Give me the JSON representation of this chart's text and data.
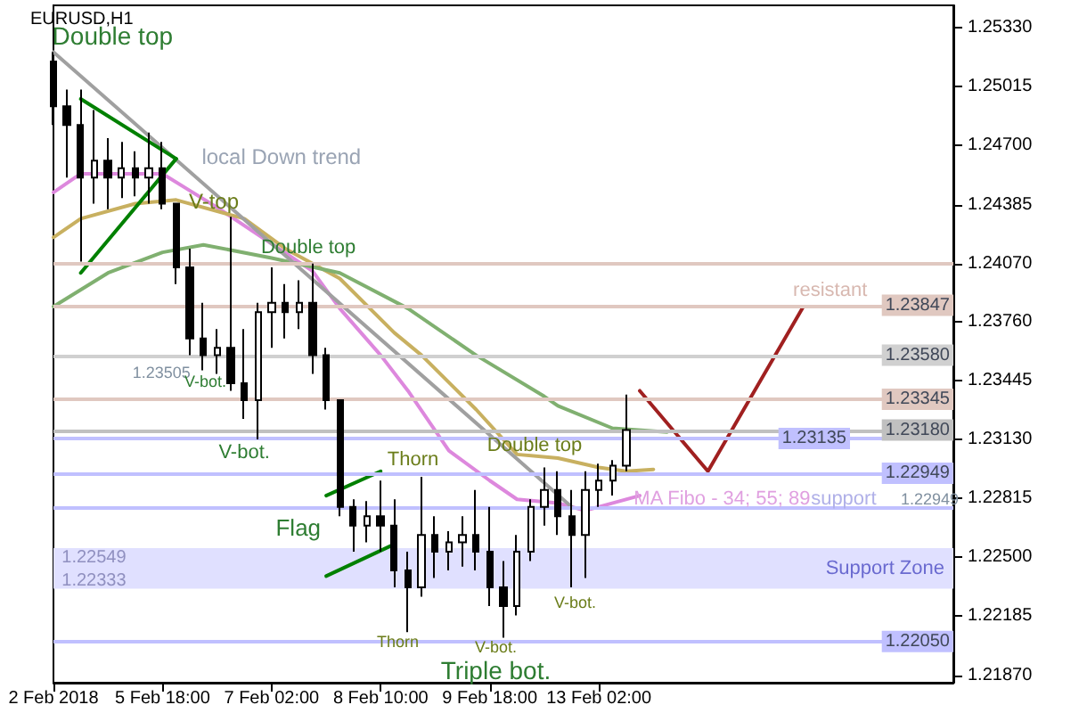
{
  "chart_data": {
    "type": "candlestick",
    "title": "EURUSD,H1",
    "color": "#000000",
    "marker": "none",
    "categories": [
      "2 Feb 2018",
      null,
      null,
      null,
      null,
      null,
      null,
      null,
      "5 Feb 18:00",
      null,
      null,
      null,
      null,
      null,
      null,
      null,
      "7 Feb 02:00",
      null,
      null,
      null,
      null,
      null,
      null,
      null,
      "8 Feb 10:00",
      null,
      null,
      null,
      null,
      null,
      null,
      null,
      "9 Feb 18:00",
      null,
      null,
      null,
      null,
      null,
      null,
      null,
      "13 Feb 02:00",
      null,
      null,
      null,
      null,
      null,
      null,
      null,
      null,
      null,
      null,
      null,
      null,
      null,
      null,
      null,
      null,
      null,
      null,
      null,
      null,
      null,
      null,
      null,
      null,
      null,
      null
    ],
    "ohlc": [
      [
        1.2515,
        1.252,
        1.2481,
        1.2491
      ],
      [
        1.2491,
        1.25,
        1.2453,
        1.2481
      ],
      [
        1.2481,
        1.25,
        1.2408,
        1.2453
      ],
      [
        1.2453,
        1.2489,
        1.2439,
        1.2462
      ],
      [
        1.2462,
        1.2474,
        1.2436,
        1.2453
      ],
      [
        1.2453,
        1.2472,
        1.2442,
        1.2458
      ],
      [
        1.2458,
        1.2467,
        1.2443,
        1.2453
      ],
      [
        1.2453,
        1.2477,
        1.2439,
        1.2458
      ],
      [
        1.2458,
        1.2472,
        1.2436,
        1.2439
      ],
      [
        1.2439,
        1.2439,
        1.2396,
        1.2405
      ],
      [
        1.2405,
        1.2415,
        1.2358,
        1.2367
      ],
      [
        1.2367,
        1.2386,
        1.235,
        1.2358
      ],
      [
        1.2358,
        1.2372,
        1.2348,
        1.2362
      ],
      [
        1.2362,
        1.2432,
        1.2339,
        1.2343
      ],
      [
        1.2343,
        1.2372,
        1.2324,
        1.2334
      ],
      [
        1.2334,
        1.2386,
        1.2313,
        1.2381
      ],
      [
        1.2381,
        1.2405,
        1.2362,
        1.2386
      ],
      [
        1.2386,
        1.2396,
        1.2367,
        1.2381
      ],
      [
        1.2381,
        1.2398,
        1.2372,
        1.2386
      ],
      [
        1.2386,
        1.2407,
        1.2348,
        1.2358
      ],
      [
        1.2358,
        1.2362,
        1.2329,
        1.2334
      ],
      [
        1.2334,
        1.2334,
        1.2272,
        1.2277
      ],
      [
        1.2277,
        1.2281,
        1.2253,
        1.2267
      ],
      [
        1.2267,
        1.228,
        1.2258,
        1.2272
      ],
      [
        1.2272,
        1.2291,
        1.2253,
        1.2267
      ],
      [
        1.2267,
        1.2281,
        1.2234,
        1.2243
      ],
      [
        1.2243,
        1.2253,
        1.221,
        1.2234
      ],
      [
        1.2234,
        1.2293,
        1.2229,
        1.2262
      ],
      [
        1.2262,
        1.2272,
        1.2239,
        1.2253
      ],
      [
        1.2253,
        1.2264,
        1.2243,
        1.2258
      ],
      [
        1.2258,
        1.2272,
        1.2245,
        1.2262
      ],
      [
        1.2262,
        1.2286,
        1.2243,
        1.2253
      ],
      [
        1.2253,
        1.2277,
        1.2224,
        1.2234
      ],
      [
        1.2234,
        1.2248,
        1.2207,
        1.2224
      ],
      [
        1.2224,
        1.2262,
        1.2219,
        1.2253
      ],
      [
        1.2253,
        1.2281,
        1.2248,
        1.2277
      ],
      [
        1.2277,
        1.2298,
        1.2267,
        1.2286
      ],
      [
        1.2286,
        1.2296,
        1.2262,
        1.2272
      ],
      [
        1.2272,
        1.2286,
        1.2234,
        1.2262
      ],
      [
        1.2262,
        1.2296,
        1.2239,
        1.2286
      ],
      [
        1.2286,
        1.23,
        1.2277,
        1.2291
      ],
      [
        1.2291,
        1.2302,
        1.2283,
        1.2299
      ],
      [
        1.2299,
        1.2337,
        1.2296,
        1.2318
      ],
      null,
      null,
      null,
      null,
      null,
      null,
      null,
      null,
      null,
      null,
      null,
      null,
      null,
      null,
      null,
      null,
      null,
      null,
      null,
      null,
      null,
      null,
      null,
      null
    ],
    "series": [
      {
        "type": "line",
        "color": "#dd88dd",
        "values": [
          1.2445,
          null,
          1.2455,
          null,
          null,
          null,
          null,
          null,
          1.2455,
          null,
          1.2446,
          null,
          1.2437,
          null,
          null,
          null,
          null,
          null,
          null,
          1.2403,
          null,
          1.2383,
          null,
          null,
          1.2358,
          null,
          1.2339,
          null,
          null,
          1.2307,
          null,
          null,
          1.2291,
          null,
          1.2281,
          null,
          null,
          1.2279,
          null,
          1.2275,
          null,
          null,
          null,
          1.2283,
          null,
          null,
          null,
          null,
          null,
          null,
          null,
          null,
          null,
          null,
          null,
          null,
          null,
          null,
          null,
          null,
          null,
          null,
          null,
          null,
          null,
          null,
          null
        ]
      },
      {
        "type": "line",
        "color": "#c8b060",
        "values": [
          1.2421,
          null,
          1.2431,
          null,
          null,
          null,
          1.2439,
          null,
          null,
          1.2441,
          null,
          null,
          null,
          null,
          1.2431,
          null,
          null,
          1.2415,
          null,
          null,
          null,
          1.2399,
          null,
          null,
          null,
          1.237,
          null,
          1.2358,
          null,
          null,
          null,
          1.2329,
          null,
          null,
          1.2305,
          null,
          null,
          1.2303,
          null,
          null,
          1.2298,
          null,
          1.2296,
          null,
          1.2297,
          null,
          null,
          null,
          null,
          null,
          null,
          null,
          null,
          null,
          null,
          null,
          null,
          null,
          null,
          null,
          null,
          null,
          null,
          null,
          null,
          null,
          null
        ]
      },
      {
        "type": "line",
        "color": "#80b070",
        "values": [
          1.2384,
          null,
          null,
          null,
          1.2402,
          null,
          null,
          null,
          1.2413,
          null,
          null,
          1.2417,
          null,
          null,
          null,
          null,
          1.241,
          null,
          null,
          null,
          null,
          1.2402,
          null,
          null,
          null,
          null,
          1.2383,
          null,
          null,
          null,
          null,
          1.2358,
          null,
          null,
          null,
          null,
          1.2336,
          1.2331,
          null,
          null,
          null,
          1.2319,
          null,
          null,
          null,
          1.2317,
          null,
          null,
          null,
          null,
          null,
          null,
          null,
          null,
          null,
          null,
          null,
          null,
          null,
          null,
          null,
          null,
          null,
          null,
          null,
          null,
          null
        ]
      },
      {
        "type": "line",
        "color": "#a0a0a0",
        "values": [
          1.252,
          null,
          null,
          null,
          null,
          null,
          null,
          null,
          null,
          null,
          null,
          null,
          null,
          null,
          null,
          null,
          null,
          null,
          null,
          null,
          null,
          null,
          null,
          null,
          null,
          null,
          null,
          null,
          null,
          null,
          null,
          null,
          null,
          null,
          null,
          null,
          null,
          null,
          1.2277,
          null,
          null,
          null,
          null,
          null,
          null,
          null,
          null,
          null,
          null,
          null,
          null,
          null,
          null,
          null,
          null,
          null,
          null,
          null,
          null,
          null,
          null,
          null,
          null,
          null,
          null,
          null,
          null
        ]
      },
      {
        "type": "line",
        "color": "#008000",
        "values": [
          null,
          null,
          1.2495,
          null,
          null,
          null,
          null,
          null,
          null,
          1.2463,
          null,
          null,
          null,
          null,
          null,
          null,
          null,
          null,
          null,
          null,
          null,
          null,
          null,
          null,
          null,
          null,
          null,
          null,
          null,
          null,
          null,
          null,
          null,
          null,
          null,
          null,
          null,
          null,
          null,
          null,
          null,
          null,
          null,
          null,
          null,
          null,
          null,
          null,
          null,
          null,
          null,
          null,
          null,
          null,
          null,
          null,
          null,
          null,
          null,
          null,
          null,
          null,
          null,
          null,
          null,
          null,
          null
        ]
      },
      {
        "type": "line",
        "color": "#008000",
        "values": [
          null,
          null,
          1.2402,
          null,
          null,
          null,
          null,
          null,
          null,
          1.2463,
          null,
          null,
          null,
          null,
          null,
          null,
          null,
          null,
          null,
          null,
          null,
          null,
          null,
          null,
          null,
          null,
          null,
          null,
          null,
          null,
          null,
          null,
          null,
          null,
          null,
          null,
          null,
          null,
          null,
          null,
          null,
          null,
          null,
          null,
          null,
          null,
          null,
          null,
          null,
          null,
          null,
          null,
          null,
          null,
          null,
          null,
          null,
          null,
          null,
          null,
          null,
          null,
          null,
          null,
          null,
          null,
          null
        ]
      },
      {
        "type": "line",
        "color": "#008000",
        "values": [
          null,
          null,
          null,
          null,
          null,
          null,
          null,
          null,
          null,
          null,
          null,
          null,
          null,
          null,
          null,
          null,
          null,
          null,
          null,
          null,
          1.2283,
          null,
          null,
          null,
          1.2296,
          null,
          null,
          null,
          null,
          null,
          null,
          null,
          null,
          null,
          null,
          null,
          null,
          null,
          null,
          null,
          null,
          null,
          null,
          null,
          null,
          null,
          null,
          null,
          null,
          null,
          null,
          null,
          null,
          null,
          null,
          null,
          null,
          null,
          null,
          null,
          null,
          null,
          null,
          null,
          null,
          null,
          null
        ]
      },
      {
        "type": "line",
        "color": "#008000",
        "values": [
          null,
          null,
          null,
          null,
          null,
          null,
          null,
          null,
          null,
          null,
          null,
          null,
          null,
          null,
          null,
          null,
          null,
          null,
          null,
          null,
          1.224,
          null,
          null,
          null,
          null,
          1.2257,
          null,
          null,
          null,
          null,
          null,
          null,
          null,
          null,
          null,
          null,
          null,
          null,
          null,
          null,
          null,
          null,
          null,
          null,
          null,
          null,
          null,
          null,
          null,
          null,
          null,
          null,
          null,
          null,
          null,
          null,
          null,
          null,
          null,
          null,
          null,
          null,
          null,
          null,
          null,
          null,
          null
        ]
      },
      {
        "type": "line",
        "color": "#a02020",
        "values": [
          null,
          null,
          null,
          null,
          null,
          null,
          null,
          null,
          null,
          null,
          null,
          null,
          null,
          null,
          null,
          null,
          null,
          null,
          null,
          null,
          null,
          null,
          null,
          null,
          null,
          null,
          null,
          null,
          null,
          null,
          null,
          null,
          null,
          null,
          null,
          null,
          null,
          null,
          null,
          null,
          null,
          null,
          null,
          1.2339,
          null,
          null,
          null,
          null,
          1.2296,
          null,
          null,
          null,
          null,
          null,
          null,
          1.2384,
          null,
          null,
          null,
          null,
          null,
          null,
          null,
          null,
          null,
          null,
          null
        ]
      }
    ],
    "ylim": [
      1.2183,
      1.2545
    ],
    "yticks": [
      {
        "value": 1.2187,
        "label": "1.21870"
      },
      {
        "value": 1.22185,
        "label": "1.22185"
      },
      {
        "value": 1.225,
        "label": "1.22500"
      },
      {
        "value": 1.22815,
        "label": "1.22815"
      },
      {
        "value": 1.2313,
        "label": "1.23130"
      },
      {
        "value": 1.23445,
        "label": "1.23445"
      },
      {
        "value": 1.2376,
        "label": "1.23760"
      },
      {
        "value": 1.2407,
        "label": "1.24070"
      },
      {
        "value": 1.24385,
        "label": "1.24385"
      },
      {
        "value": 1.247,
        "label": "1.24700"
      },
      {
        "value": 1.25015,
        "label": "1.25015"
      },
      {
        "value": 1.2533,
        "label": "1.25330"
      }
    ],
    "ref_lines": [
      {
        "axis": "y",
        "value": 1.2407,
        "label": null,
        "color": "#e0c8c0"
      },
      {
        "axis": "y",
        "value": 1.23847,
        "label": "1.23847",
        "color": "#e0c8c0"
      },
      {
        "axis": "y",
        "value": 1.2358,
        "label": "1.23580",
        "color": "#d0d0d0"
      },
      {
        "axis": "y",
        "value": 1.23345,
        "label": "1.23345",
        "color": "#e0c8c0"
      },
      {
        "axis": "y",
        "value": 1.2318,
        "label": "1.23180",
        "color": "#c0c0c0"
      },
      {
        "axis": "y",
        "value": 1.23135,
        "label": "1.23135",
        "color": "#c0c0ff"
      },
      {
        "axis": "y",
        "value": 1.22949,
        "label": "1.22949",
        "color": "#c0c0ff"
      },
      {
        "axis": "y",
        "value": 1.2277,
        "label": null,
        "color": "#c0c0ff"
      },
      {
        "axis": "y",
        "value": 1.2205,
        "label": "1.22050",
        "color": "#c0c0ff"
      }
    ],
    "bands": [
      {
        "axis": "y",
        "from": 1.22333,
        "to": 1.22549,
        "label": "Support Zone",
        "color": "#e0e0ff"
      }
    ],
    "annotations": [
      "Double top",
      "local Down trend",
      "V-top",
      "Double top",
      "1.23505",
      "V-bot.",
      "V-bot.",
      "Thorn",
      "Double top",
      "Flag",
      "Thorn",
      "V-bot.",
      "Triple bot.",
      "V-bot.",
      "MA Fibo - 34; 55; 89",
      "resistant",
      "support",
      "1.22549",
      "1.22333",
      "1.22949"
    ]
  }
}
